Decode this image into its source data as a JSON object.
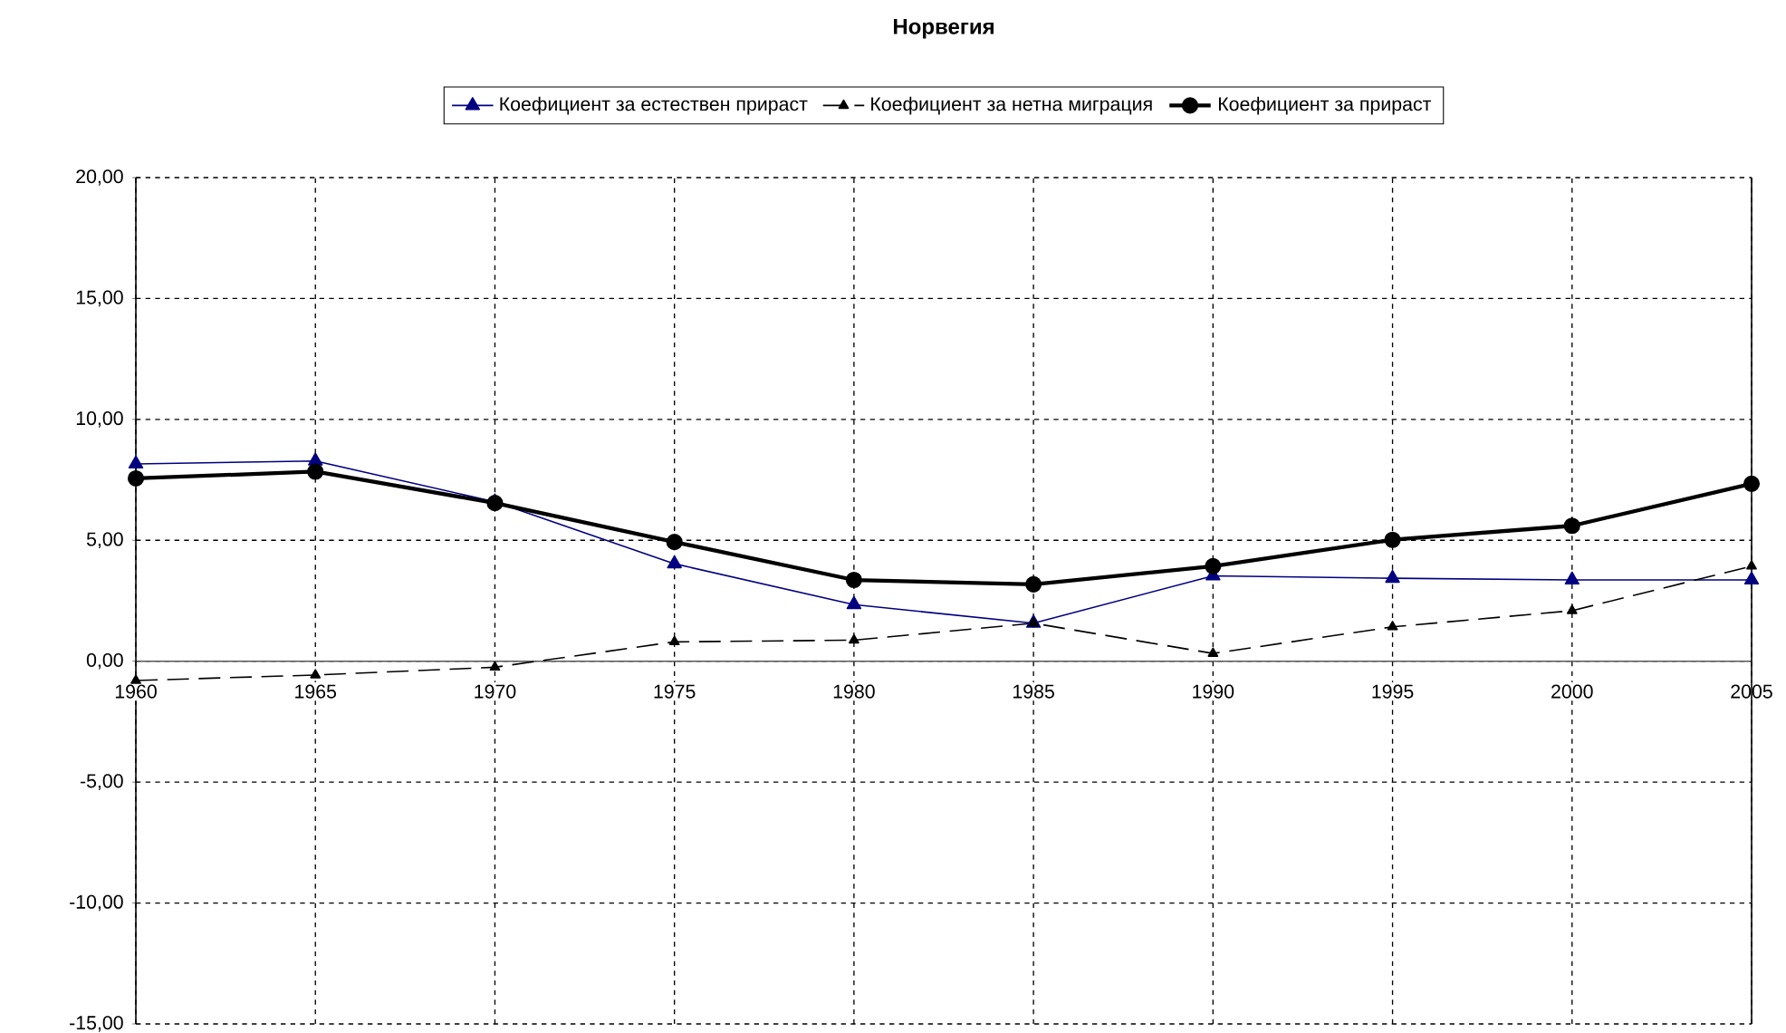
{
  "chart_data": {
    "type": "line",
    "title": "Норвегия",
    "categories": [
      "1960",
      "1965",
      "1970",
      "1975",
      "1980",
      "1985",
      "1990",
      "1995",
      "2000",
      "2005"
    ],
    "series": [
      {
        "name": "Коефициент за естествен прираст",
        "color": "#000080",
        "marker": "triangle",
        "line_style": "solid",
        "values": [
          8.16,
          8.28,
          6.59,
          4.03,
          2.34,
          1.57,
          3.53,
          3.43,
          3.36,
          3.36
        ]
      },
      {
        "name": "Коефициент за нетна миграция",
        "color": "#000000",
        "marker": "triangle",
        "line_style": "dashed",
        "values": [
          -0.8,
          -0.57,
          -0.25,
          0.8,
          0.87,
          1.57,
          0.32,
          1.42,
          2.09,
          3.93
        ]
      },
      {
        "name": "Коефициент за прираст",
        "color": "#000000",
        "marker": "circle",
        "line_style": "solid",
        "values": [
          7.56,
          7.84,
          6.54,
          4.93,
          3.36,
          3.18,
          3.93,
          5.02,
          5.6,
          7.34
        ]
      }
    ],
    "ylim": [
      -15,
      20
    ],
    "yticks": [
      {
        "value": -15,
        "label": "-15,00"
      },
      {
        "value": -10,
        "label": "-10,00"
      },
      {
        "value": -5,
        "label": "-5,00"
      },
      {
        "value": 0,
        "label": "0,00"
      },
      {
        "value": 5,
        "label": "5,00"
      },
      {
        "value": 10,
        "label": "10,00"
      },
      {
        "value": 15,
        "label": "15,00"
      },
      {
        "value": 20,
        "label": "20,00"
      }
    ],
    "grid": true,
    "legend": "top"
  }
}
